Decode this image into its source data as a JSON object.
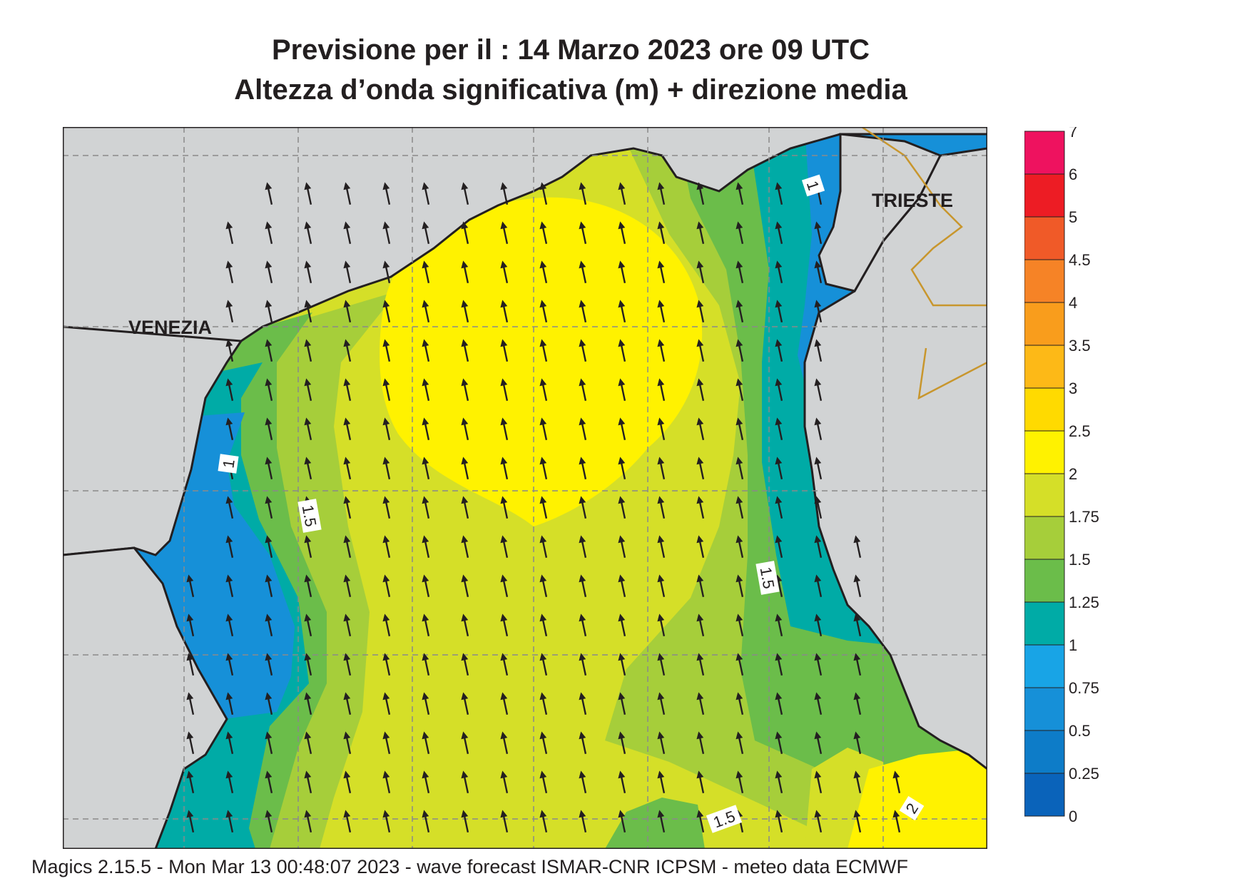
{
  "title": {
    "line1": "Previsione per il  :  14   Marzo   2023   ore 09 UTC",
    "line2": "Altezza d’onda significativa (m) + direzione media"
  },
  "places": [
    {
      "name": "VENEZIA"
    },
    {
      "name": "TRIESTE"
    }
  ],
  "contour_labels": [
    "1",
    "1",
    "1.5",
    "1.5",
    "1.5",
    "2"
  ],
  "colorbar": {
    "ticks": [
      "0",
      "0.25",
      "0.5",
      "0.75",
      "1",
      "1.25",
      "1.5",
      "1.75",
      "2",
      "2.5",
      "3",
      "3.5",
      "4",
      "4.5",
      "5",
      "6",
      "7"
    ],
    "colors": [
      "#0a63ba",
      "#0d7cc8",
      "#1690d8",
      "#18a4e6",
      "#00aba6",
      "#6bbd4a",
      "#a6ce3a",
      "#d5df28",
      "#fff200",
      "#ffda00",
      "#fdb917",
      "#f99d1c",
      "#f68326",
      "#f05a28",
      "#ed1c24",
      "#ee125f"
    ]
  },
  "colors": {
    "land": "#d1d3d4",
    "sea_base": "#d5df28",
    "band_175": "#a6ce3a",
    "band_15": "#6bbd4a",
    "band_125": "#00aba6",
    "band_1": "#1690d8",
    "band_2": "#fff200",
    "arrow": "#231f20",
    "border": "#c8962d"
  },
  "field_arrows": {
    "direction": "north",
    "tilt_deg": -12
  },
  "footer": "Magics 2.15.5 - Mon Mar 13 00:48:07 2023 - wave forecast  ISMAR-CNR  ICPSM - meteo data   ECMWF"
}
